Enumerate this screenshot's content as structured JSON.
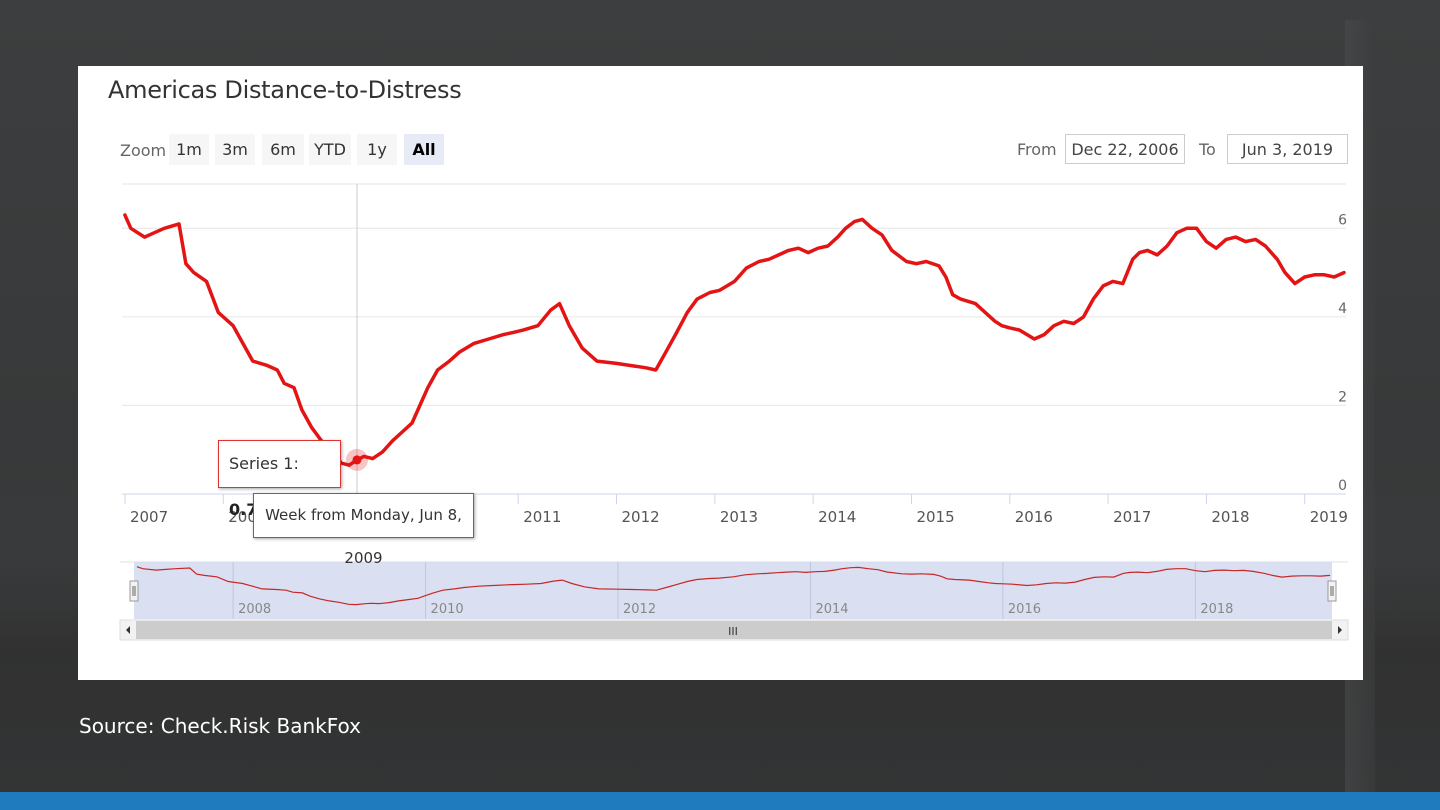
{
  "title": "Americas Distance-to-Distress",
  "zoom": {
    "label": "Zoom",
    "buttons": [
      "1m",
      "3m",
      "6m",
      "YTD",
      "1y",
      "All"
    ],
    "active": "All"
  },
  "range": {
    "from_label": "From",
    "from_value": "Dec 22, 2006",
    "to_label": "To",
    "to_value": "Jun 3, 2019"
  },
  "tooltip": {
    "series_label": "Series 1",
    "value": "0.77",
    "date_label": "Week from Monday, Jun 8, 2009"
  },
  "source": "Source: Check.Risk BankFox",
  "colors": {
    "line": "#e41414",
    "navigator_line": "#c62828",
    "navigator_mask": "#d4dbef",
    "accent_bar": "#1f7bbd"
  },
  "chart_data": {
    "type": "line",
    "title": "Americas Distance-to-Distress",
    "xlabel": "",
    "ylabel": "",
    "xlim": [
      2006.97,
      2019.42
    ],
    "ylim": [
      0,
      7
    ],
    "y_ticks": [
      0,
      2,
      4,
      6
    ],
    "x_ticks": [
      2007,
      2008,
      2009,
      2010,
      2011,
      2012,
      2013,
      2014,
      2015,
      2016,
      2017,
      2018,
      2019
    ],
    "navigator_ticks": [
      2008,
      2010,
      2012,
      2014,
      2016,
      2018
    ],
    "grid": true,
    "legend": "none",
    "series": [
      {
        "x": [
          2007.0,
          2007.06,
          2007.2,
          2007.3,
          2007.4,
          2007.55,
          2007.62,
          2007.7,
          2007.83,
          2007.95,
          2008.1,
          2008.2,
          2008.3,
          2008.45,
          2008.55,
          2008.62,
          2008.72,
          2008.8,
          2008.9,
          2009.0,
          2009.1,
          2009.2,
          2009.28,
          2009.36,
          2009.43,
          2009.52,
          2009.62,
          2009.72,
          2009.82,
          2009.92,
          2010.0,
          2010.08,
          2010.18,
          2010.3,
          2010.4,
          2010.55,
          2010.7,
          2010.85,
          2010.95,
          2011.05,
          2011.2,
          2011.33,
          2011.42,
          2011.52,
          2011.65,
          2011.8,
          2012.0,
          2012.15,
          2012.3,
          2012.4,
          2012.5,
          2012.6,
          2012.72,
          2012.82,
          2012.95,
          2013.05,
          2013.2,
          2013.32,
          2013.45,
          2013.55,
          2013.65,
          2013.75,
          2013.85,
          2013.95,
          2014.05,
          2014.15,
          2014.25,
          2014.33,
          2014.42,
          2014.5,
          2014.6,
          2014.7,
          2014.8,
          2014.95,
          2015.05,
          2015.15,
          2015.28,
          2015.35,
          2015.42,
          2015.5,
          2015.65,
          2015.75,
          2015.85,
          2015.92,
          2016.0,
          2016.1,
          2016.25,
          2016.35,
          2016.45,
          2016.55,
          2016.65,
          2016.75,
          2016.85,
          2016.95,
          2017.05,
          2017.15,
          2017.25,
          2017.32,
          2017.4,
          2017.5,
          2017.6,
          2017.7,
          2017.8,
          2017.9,
          2018.0,
          2018.1,
          2018.2,
          2018.3,
          2018.4,
          2018.5,
          2018.6,
          2018.72,
          2018.8,
          2018.9,
          2019.0,
          2019.1,
          2019.2,
          2019.3,
          2019.4
        ],
        "y": [
          6.3,
          6.0,
          5.8,
          5.9,
          6.0,
          6.1,
          5.2,
          5.0,
          4.8,
          4.1,
          3.8,
          3.4,
          3.0,
          2.9,
          2.8,
          2.5,
          2.4,
          1.9,
          1.5,
          1.2,
          1.0,
          0.7,
          0.65,
          0.77,
          0.85,
          0.8,
          0.95,
          1.2,
          1.4,
          1.6,
          2.0,
          2.4,
          2.8,
          3.0,
          3.2,
          3.4,
          3.5,
          3.6,
          3.65,
          3.7,
          3.8,
          4.15,
          4.3,
          3.8,
          3.3,
          3.0,
          2.95,
          2.9,
          2.85,
          2.8,
          3.2,
          3.6,
          4.1,
          4.4,
          4.55,
          4.6,
          4.8,
          5.1,
          5.25,
          5.3,
          5.4,
          5.5,
          5.55,
          5.45,
          5.55,
          5.6,
          5.8,
          6.0,
          6.15,
          6.2,
          6.0,
          5.85,
          5.5,
          5.25,
          5.2,
          5.25,
          5.15,
          4.9,
          4.5,
          4.4,
          4.3,
          4.1,
          3.9,
          3.8,
          3.75,
          3.7,
          3.5,
          3.6,
          3.8,
          3.9,
          3.85,
          4.0,
          4.4,
          4.7,
          4.8,
          4.75,
          5.3,
          5.45,
          5.5,
          5.4,
          5.6,
          5.9,
          6.0,
          6.0,
          5.7,
          5.55,
          5.75,
          5.8,
          5.7,
          5.75,
          5.6,
          5.3,
          5.0,
          4.75,
          4.9,
          4.95,
          4.95,
          4.9,
          5.0
        ]
      }
    ]
  }
}
